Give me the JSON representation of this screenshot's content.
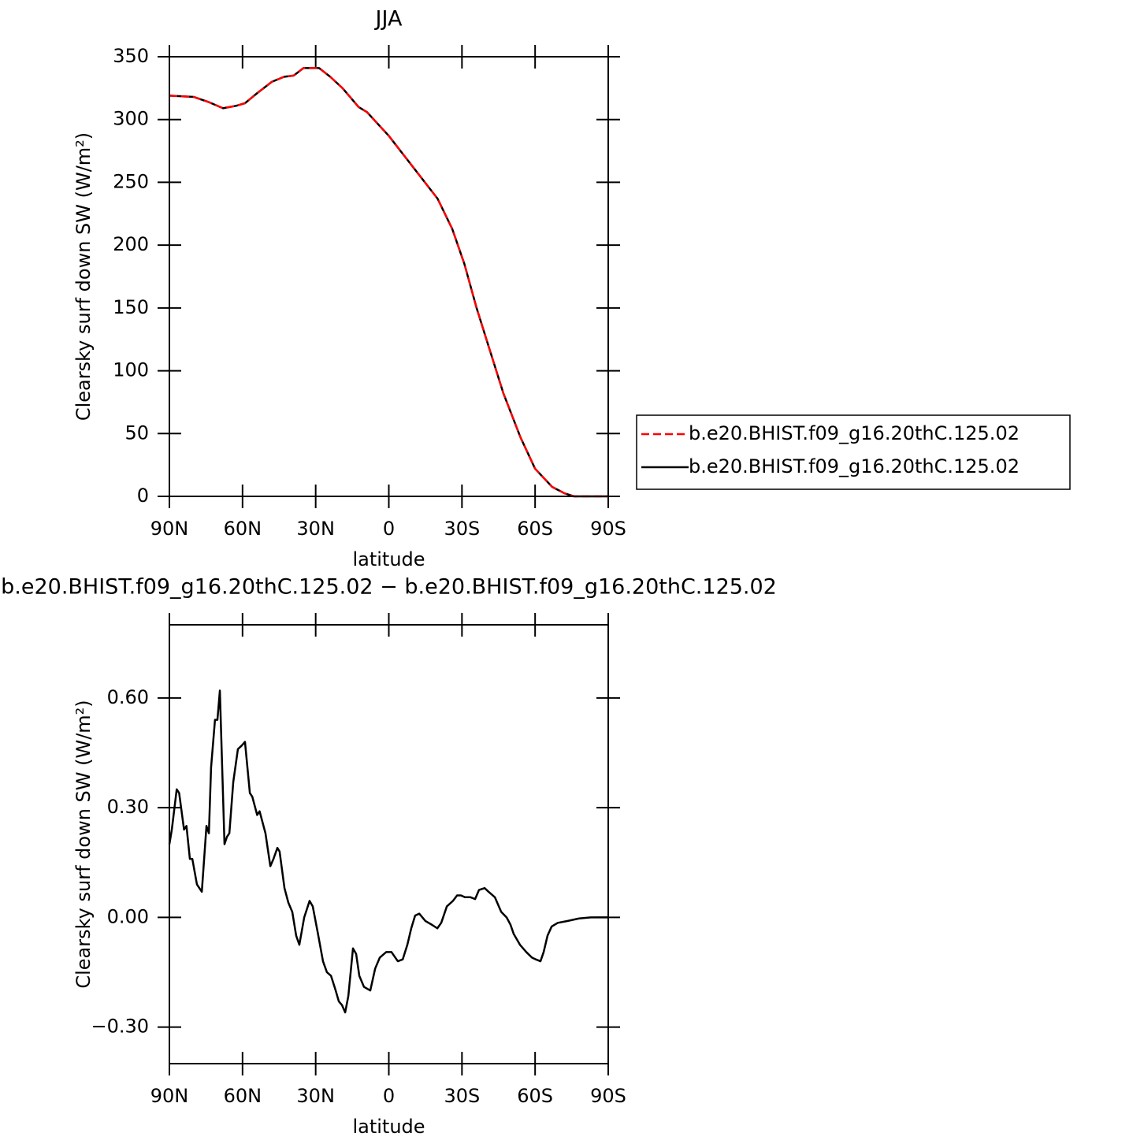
{
  "chart_data": [
    {
      "type": "line",
      "title": "JJA",
      "xlabel": "latitude",
      "ylabel": "Clearsky surf down SW (W/m²)",
      "x": [
        90,
        80,
        74,
        68,
        62.5,
        59,
        54,
        48,
        43,
        39,
        35,
        28.6,
        24,
        19,
        12.4,
        9,
        0,
        -10,
        -20,
        -26,
        -31,
        -36,
        -41,
        -47,
        -54,
        -60,
        -67,
        -72,
        -76,
        -90
      ],
      "series": [
        {
          "name": "b.e20.BHIST.f09_g16.20thC.125.02",
          "color": "#ff0000",
          "line_style": "dashed",
          "values": [
            319,
            318,
            314,
            309,
            311,
            313,
            321,
            330,
            334,
            335,
            341,
            341,
            334,
            325,
            310,
            306,
            287,
            262,
            237,
            213,
            185,
            150,
            119,
            82,
            47,
            22,
            7.5,
            2.5,
            0,
            0
          ]
        },
        {
          "name": "b.e20.BHIST.f09_g16.20thC.125.02",
          "color": "#000000",
          "line_style": "solid",
          "values": [
            319,
            318,
            314,
            309,
            311,
            313,
            321,
            330,
            334,
            335,
            341,
            341,
            334,
            325,
            310,
            306,
            287,
            262,
            237,
            213,
            185,
            150,
            119,
            82,
            47,
            22,
            7.5,
            2.5,
            0,
            0
          ]
        }
      ],
      "xlim": [
        90,
        -90
      ],
      "xticks": [
        {
          "value": 90,
          "label": "90N"
        },
        {
          "value": 60,
          "label": "60N"
        },
        {
          "value": 30,
          "label": "30N"
        },
        0,
        {
          "value": -30,
          "label": "30S"
        },
        {
          "value": -60,
          "label": "60S"
        },
        {
          "value": -90,
          "label": "90S"
        }
      ],
      "ylim": [
        0,
        350
      ],
      "yticks": [
        0,
        50,
        100,
        150,
        200,
        250,
        300,
        350
      ],
      "legend": "right"
    },
    {
      "type": "line",
      "title": "b.e20.BHIST.f09_g16.20thC.125.02 − b.e20.BHIST.f09_g16.20thC.125.02",
      "xlabel": "latitude",
      "ylabel": "Clearsky surf down SW (W/m²)",
      "x": [
        90,
        89,
        87,
        86,
        84,
        83,
        81.6,
        80.6,
        78.7,
        76.7,
        74.8,
        73.8,
        72.9,
        71.3,
        70.3,
        69.3,
        67.4,
        66.4,
        65.4,
        63.8,
        61.9,
        60.3,
        59,
        57,
        56,
        54,
        53,
        50.6,
        48.6,
        47.3,
        45.7,
        44.8,
        42.8,
        41.2,
        39.6,
        38,
        36.7,
        34.7,
        32.5,
        31.2,
        29.2,
        27,
        25.4,
        23.7,
        21.8,
        20.5,
        19.2,
        17.9,
        16.6,
        14.7,
        13.4,
        12.1,
        10.2,
        7.6,
        5.6,
        3.7,
        1.1,
        -1.1,
        -3.7,
        -5.7,
        -7.6,
        -9.2,
        -10.8,
        -12.5,
        -15,
        -17.6,
        -19.9,
        -21.5,
        -23.8,
        -26.3,
        -28,
        -29.6,
        -31.2,
        -33.5,
        -35.4,
        -37,
        -39.3,
        -40.9,
        -43.5,
        -46.1,
        -48.3,
        -49.9,
        -51.2,
        -53.8,
        -56.4,
        -58.7,
        -60.3,
        -62.2,
        -63.5,
        -65.1,
        -66.8,
        -69.3,
        -73.2,
        -78,
        -82.9,
        -90
      ],
      "values": [
        0.2,
        0.24,
        0.35,
        0.34,
        0.24,
        0.25,
        0.16,
        0.16,
        0.09,
        0.07,
        0.25,
        0.23,
        0.41,
        0.54,
        0.54,
        0.62,
        0.2,
        0.22,
        0.23,
        0.37,
        0.46,
        0.47,
        0.48,
        0.34,
        0.33,
        0.28,
        0.29,
        0.23,
        0.14,
        0.16,
        0.19,
        0.18,
        0.08,
        0.04,
        0.015,
        -0.05,
        -0.075,
        0.0,
        0.045,
        0.03,
        -0.04,
        -0.12,
        -0.15,
        -0.16,
        -0.2,
        -0.23,
        -0.24,
        -0.26,
        -0.215,
        -0.085,
        -0.1,
        -0.16,
        -0.19,
        -0.2,
        -0.14,
        -0.11,
        -0.095,
        -0.095,
        -0.12,
        -0.115,
        -0.075,
        -0.03,
        0.005,
        0.01,
        -0.01,
        -0.02,
        -0.03,
        -0.015,
        0.03,
        0.045,
        0.06,
        0.06,
        0.055,
        0.055,
        0.05,
        0.075,
        0.08,
        0.07,
        0.055,
        0.015,
        0.0,
        -0.02,
        -0.045,
        -0.075,
        -0.095,
        -0.11,
        -0.115,
        -0.12,
        -0.095,
        -0.05,
        -0.025,
        -0.015,
        -0.01,
        -0.003,
        0,
        0
      ],
      "color": "#000000",
      "xlim": [
        90,
        -90
      ],
      "xticks": [
        {
          "value": 90,
          "label": "90N"
        },
        {
          "value": 60,
          "label": "60N"
        },
        {
          "value": 30,
          "label": "30N"
        },
        0,
        {
          "value": -30,
          "label": "30S"
        },
        {
          "value": -60,
          "label": "60S"
        },
        {
          "value": -90,
          "label": "90S"
        }
      ],
      "ylim": [
        -0.4,
        0.8
      ],
      "yticks": [
        {
          "value": -0.3,
          "label": "−0.30"
        },
        {
          "value": 0,
          "label": "0.00"
        },
        {
          "value": 0.3,
          "label": "0.30"
        },
        {
          "value": 0.6,
          "label": "0.60"
        }
      ]
    }
  ]
}
